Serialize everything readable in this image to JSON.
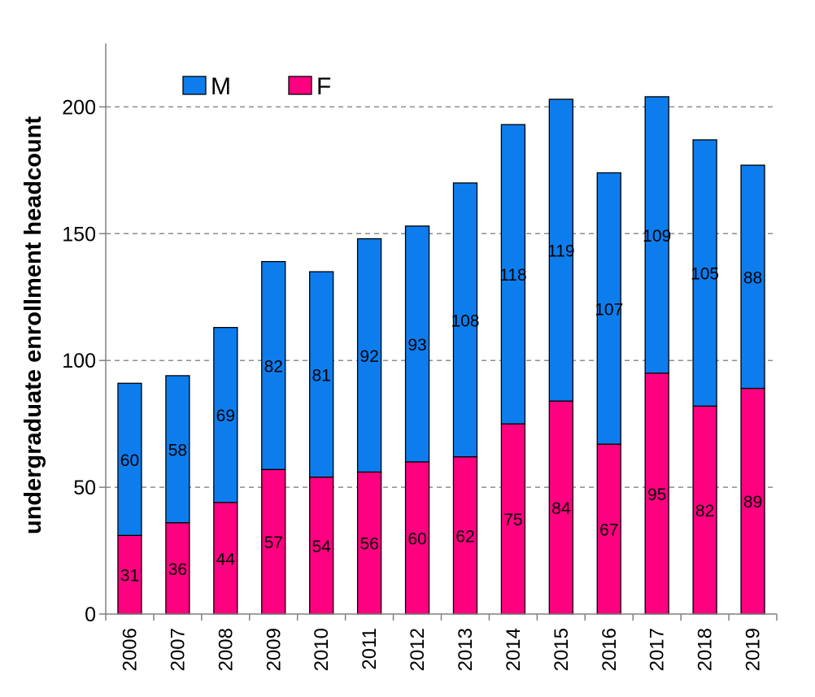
{
  "chart_data": {
    "type": "bar",
    "stacked": true,
    "title": "",
    "xlabel": "",
    "ylabel": "undergraduate enrollment headcount",
    "categories": [
      "2006",
      "2007",
      "2008",
      "2009",
      "2010",
      "2011",
      "2012",
      "2013",
      "2014",
      "2015",
      "2016",
      "2017",
      "2018",
      "2019"
    ],
    "series": [
      {
        "name": "F",
        "color": "#ff0080",
        "values": [
          31,
          36,
          44,
          57,
          54,
          56,
          60,
          62,
          75,
          84,
          67,
          95,
          82,
          89
        ]
      },
      {
        "name": "M",
        "color": "#0d7dee",
        "values": [
          60,
          58,
          69,
          82,
          81,
          92,
          93,
          108,
          118,
          119,
          107,
          109,
          105,
          88
        ]
      }
    ],
    "ylim": [
      0,
      225
    ],
    "yticks": [
      0,
      50,
      100,
      150,
      200
    ],
    "grid": true,
    "legend": {
      "position": "top-left",
      "order": [
        "M",
        "F"
      ]
    }
  }
}
